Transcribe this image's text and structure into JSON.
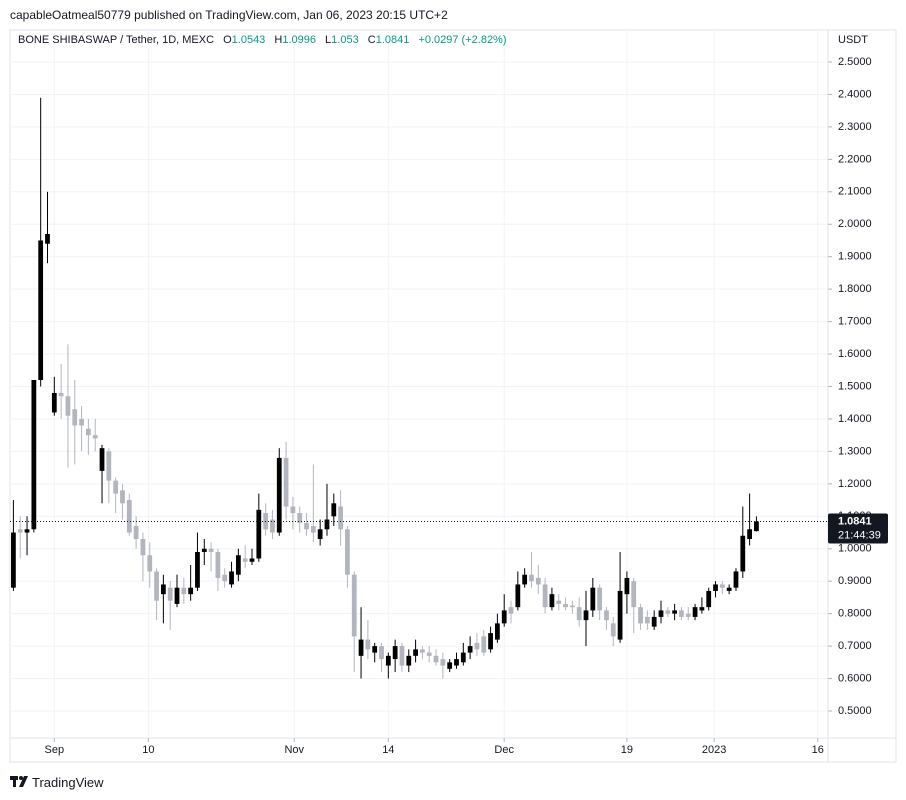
{
  "header": {
    "publisher": "capableOatmeal50779 published on TradingView.com, Jan 06, 2023 20:15 UTC+2",
    "symbol": "BONE SHIBASWAP / Tether, 1D, MEXC",
    "o_label": "O",
    "h_label": "H",
    "l_label": "L",
    "c_label": "C",
    "change": "+0.0297 (+2.82%)",
    "brand": "TradingView"
  },
  "chart_data": {
    "type": "candlestick",
    "y_axis_unit": "USDT",
    "countdown": "21:44:39",
    "up_color": "#000000",
    "down_color": "#b2b5be",
    "grid": true,
    "x": [
      0,
      1,
      2,
      3,
      4,
      5,
      6,
      7,
      8,
      9,
      10,
      11,
      12,
      13,
      14,
      15,
      16,
      17,
      18,
      19,
      20,
      21,
      22,
      23,
      24,
      25,
      26,
      27,
      28,
      29,
      30,
      31,
      32,
      33,
      34,
      35,
      36,
      37,
      38,
      39,
      40,
      41,
      42,
      43,
      44,
      45,
      46,
      47,
      48,
      49,
      50,
      51,
      52,
      53,
      54,
      55,
      56,
      57,
      58,
      59,
      60,
      61,
      62,
      63,
      64,
      65,
      66,
      67,
      68,
      69,
      70,
      71,
      72,
      73,
      74,
      75,
      76,
      77,
      78,
      79,
      80,
      81,
      82,
      83,
      84,
      85,
      86,
      87,
      88,
      89,
      90,
      91,
      92,
      93,
      94,
      95,
      96,
      97,
      98,
      99,
      100,
      101,
      102,
      103,
      104,
      105,
      106,
      107,
      108,
      109
    ],
    "open": [
      0.88,
      1.06,
      1.05,
      1.06,
      1.52,
      1.94,
      1.42,
      1.48,
      1.47,
      1.43,
      1.4,
      1.37,
      1.35,
      1.24,
      1.3,
      1.21,
      1.18,
      1.15,
      1.07,
      1.03,
      0.98,
      0.93,
      0.86,
      0.88,
      0.83,
      0.88,
      0.86,
      0.88,
      0.99,
      1.0,
      0.99,
      0.92,
      0.89,
      0.92,
      0.97,
      0.96,
      0.97,
      1.11,
      1.09,
      1.05,
      1.28,
      1.13,
      1.11,
      1.08,
      1.07,
      1.03,
      1.06,
      1.1,
      1.13,
      1.06,
      0.92,
      0.67,
      0.72,
      0.68,
      0.7,
      0.64,
      0.66,
      0.7,
      0.64,
      0.67,
      0.69,
      0.68,
      0.67,
      0.66,
      0.63,
      0.64,
      0.65,
      0.68,
      0.71,
      0.73,
      0.69,
      0.72,
      0.77,
      0.82,
      0.82,
      0.89,
      0.92,
      0.91,
      0.89,
      0.82,
      0.84,
      0.83,
      0.825,
      0.82,
      0.78,
      0.81,
      0.88,
      0.81,
      0.77,
      0.72,
      0.86,
      0.9,
      0.82,
      0.79,
      0.76,
      0.79,
      0.81,
      0.8,
      0.81,
      0.8,
      0.79,
      0.81,
      0.82,
      0.87,
      0.89,
      0.87,
      0.88,
      0.93,
      1.03,
      1.0543
    ],
    "high": [
      1.15,
      1.1,
      1.1,
      1.52,
      2.39,
      2.1,
      1.53,
      1.57,
      1.63,
      1.52,
      1.44,
      1.4,
      1.4,
      1.32,
      1.31,
      1.22,
      1.2,
      1.17,
      1.1,
      1.05,
      1.02,
      0.94,
      0.92,
      0.9,
      0.92,
      0.91,
      0.95,
      1.05,
      1.03,
      1.02,
      1.0,
      0.94,
      0.96,
      1.0,
      1.01,
      1.0,
      1.17,
      1.14,
      1.12,
      1.31,
      1.33,
      1.16,
      1.13,
      1.11,
      1.26,
      1.09,
      1.2,
      1.17,
      1.18,
      1.07,
      0.93,
      0.82,
      0.78,
      0.71,
      0.71,
      0.68,
      0.72,
      0.71,
      0.69,
      0.72,
      0.7,
      0.7,
      0.69,
      0.68,
      0.66,
      0.68,
      0.71,
      0.73,
      0.74,
      0.75,
      0.76,
      0.8,
      0.86,
      0.84,
      0.93,
      0.94,
      0.99,
      0.95,
      0.91,
      0.88,
      0.86,
      0.85,
      0.84,
      0.85,
      0.87,
      0.91,
      0.89,
      0.82,
      0.79,
      0.99,
      0.93,
      0.91,
      0.83,
      0.81,
      0.81,
      0.84,
      0.82,
      0.83,
      0.82,
      0.82,
      0.83,
      0.85,
      0.88,
      0.9,
      0.9,
      0.89,
      0.94,
      1.13,
      1.17,
      1.0996
    ],
    "low": [
      0.87,
      0.97,
      0.98,
      1.05,
      1.5,
      1.88,
      1.41,
      1.4,
      1.25,
      1.26,
      1.3,
      1.29,
      1.3,
      1.14,
      1.14,
      1.11,
      1.09,
      1.04,
      1.0,
      0.9,
      0.88,
      0.78,
      0.77,
      0.75,
      0.82,
      0.83,
      0.84,
      0.87,
      0.95,
      0.93,
      0.87,
      0.88,
      0.88,
      0.9,
      0.94,
      0.95,
      0.96,
      1.04,
      1.03,
      1.04,
      1.09,
      1.06,
      1.05,
      1.04,
      1.02,
      1.01,
      1.04,
      1.07,
      1.01,
      0.88,
      0.62,
      0.6,
      0.66,
      0.65,
      0.62,
      0.6,
      0.62,
      0.62,
      0.62,
      0.65,
      0.66,
      0.65,
      0.64,
      0.6,
      0.62,
      0.63,
      0.64,
      0.66,
      0.67,
      0.67,
      0.68,
      0.71,
      0.76,
      0.77,
      0.81,
      0.88,
      0.88,
      0.86,
      0.8,
      0.81,
      0.81,
      0.81,
      0.8,
      0.76,
      0.7,
      0.79,
      0.78,
      0.75,
      0.7,
      0.71,
      0.8,
      0.74,
      0.75,
      0.75,
      0.75,
      0.77,
      0.79,
      0.78,
      0.78,
      0.78,
      0.78,
      0.8,
      0.81,
      0.85,
      0.86,
      0.86,
      0.87,
      0.91,
      1.01,
      1.053
    ],
    "close": [
      1.05,
      1.05,
      1.06,
      1.52,
      1.95,
      1.97,
      1.48,
      1.47,
      1.41,
      1.38,
      1.38,
      1.35,
      1.34,
      1.31,
      1.21,
      1.17,
      1.14,
      1.05,
      1.03,
      0.98,
      0.93,
      0.84,
      0.89,
      0.84,
      0.88,
      0.86,
      0.88,
      0.99,
      1.0,
      0.99,
      0.91,
      0.9,
      0.93,
      0.98,
      0.96,
      0.97,
      1.12,
      1.06,
      1.05,
      1.28,
      1.13,
      1.11,
      1.08,
      1.06,
      1.05,
      1.06,
      1.09,
      1.14,
      1.06,
      0.92,
      0.73,
      0.72,
      0.69,
      0.7,
      0.66,
      0.67,
      0.7,
      0.64,
      0.67,
      0.69,
      0.68,
      0.67,
      0.65,
      0.64,
      0.65,
      0.66,
      0.68,
      0.7,
      0.69,
      0.68,
      0.74,
      0.77,
      0.81,
      0.8,
      0.89,
      0.92,
      0.9,
      0.89,
      0.82,
      0.86,
      0.83,
      0.82,
      0.82,
      0.78,
      0.81,
      0.88,
      0.81,
      0.78,
      0.73,
      0.87,
      0.91,
      0.82,
      0.77,
      0.77,
      0.79,
      0.81,
      0.8,
      0.81,
      0.79,
      0.79,
      0.82,
      0.82,
      0.87,
      0.89,
      0.88,
      0.88,
      0.93,
      1.04,
      1.06,
      1.0841
    ],
    "xlim": [
      -0.5,
      119.5
    ],
    "xticks": [
      {
        "value": 6,
        "label": "Sep"
      },
      {
        "value": 19.8,
        "label": "10"
      },
      {
        "value": 41.2,
        "label": "Nov"
      },
      {
        "value": 55,
        "label": "14"
      },
      {
        "value": 72,
        "label": "Dec"
      },
      {
        "value": 90,
        "label": "19"
      },
      {
        "value": 102.8,
        "label": "2023"
      },
      {
        "value": 118,
        "label": "16"
      }
    ],
    "ylim": [
      0.4168,
      2.5986
    ],
    "yticks": [
      {
        "value": 0.5,
        "label": "0.5000"
      },
      {
        "value": 0.6,
        "label": "0.6000"
      },
      {
        "value": 0.7,
        "label": "0.7000"
      },
      {
        "value": 0.8,
        "label": "0.8000"
      },
      {
        "value": 0.9,
        "label": "0.9000"
      },
      {
        "value": 1.0,
        "label": "1.0000"
      },
      {
        "value": 1.1,
        "label": "1.1000"
      },
      {
        "value": 1.2,
        "label": "1.2000"
      },
      {
        "value": 1.3,
        "label": "1.3000"
      },
      {
        "value": 1.4,
        "label": "1.4000"
      },
      {
        "value": 1.5,
        "label": "1.5000"
      },
      {
        "value": 1.6,
        "label": "1.6000"
      },
      {
        "value": 1.7,
        "label": "1.7000"
      },
      {
        "value": 1.8,
        "label": "1.8000"
      },
      {
        "value": 1.9,
        "label": "1.9000"
      },
      {
        "value": 2.0,
        "label": "2.0000"
      },
      {
        "value": 2.1,
        "label": "2.1000"
      },
      {
        "value": 2.2,
        "label": "2.2000"
      },
      {
        "value": 2.3,
        "label": "2.3000"
      },
      {
        "value": 2.4,
        "label": "2.4000"
      },
      {
        "value": 2.5,
        "label": "2.5000"
      }
    ]
  }
}
